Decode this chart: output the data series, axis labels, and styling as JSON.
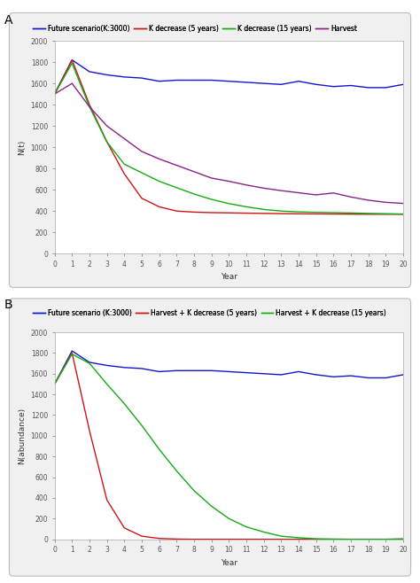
{
  "panel_A": {
    "label": "A",
    "legend": [
      {
        "label": "Future scenario(K:3000)",
        "color": "#1414cc",
        "lw": 1.0
      },
      {
        "label": "K decrease (5 years)",
        "color": "#cc1414",
        "lw": 1.0
      },
      {
        "label": "K decrease (15 years)",
        "color": "#14aa14",
        "lw": 1.0
      },
      {
        "label": "Harvest",
        "color": "#882288",
        "lw": 1.0
      }
    ],
    "xlabel": "Year",
    "ylabel": "N(t)",
    "ylim": [
      0,
      2000
    ],
    "xlim": [
      0,
      20
    ],
    "xticks": [
      0,
      1,
      2,
      3,
      4,
      5,
      6,
      7,
      8,
      9,
      10,
      11,
      12,
      13,
      14,
      15,
      16,
      17,
      18,
      19,
      20
    ],
    "yticks": [
      0,
      200,
      400,
      600,
      800,
      1000,
      1200,
      1400,
      1600,
      1800,
      2000
    ],
    "blue_y": [
      1500,
      1820,
      1710,
      1680,
      1660,
      1650,
      1620,
      1630,
      1630,
      1630,
      1620,
      1610,
      1600,
      1590,
      1620,
      1590,
      1570,
      1580,
      1560,
      1560,
      1590
    ],
    "red_y": [
      1500,
      1820,
      1400,
      1050,
      750,
      520,
      440,
      400,
      390,
      385,
      383,
      380,
      378,
      376,
      374,
      373,
      372,
      371,
      370,
      370,
      370
    ],
    "green_y": [
      1500,
      1790,
      1380,
      1050,
      840,
      760,
      680,
      620,
      560,
      510,
      470,
      440,
      415,
      400,
      392,
      388,
      385,
      382,
      378,
      375,
      372
    ],
    "purple_y": [
      1500,
      1600,
      1380,
      1200,
      1080,
      960,
      890,
      830,
      770,
      710,
      680,
      645,
      615,
      592,
      572,
      552,
      570,
      532,
      502,
      482,
      472
    ]
  },
  "panel_B": {
    "label": "B",
    "legend": [
      {
        "label": "Future scenario (K:3000)",
        "color": "#1414cc",
        "lw": 1.0
      },
      {
        "label": "Harvest + K decrease (5 years)",
        "color": "#cc1414",
        "lw": 1.0
      },
      {
        "label": "Harvest + K decrease (15 years)",
        "color": "#14aa14",
        "lw": 1.0
      }
    ],
    "xlabel": "Year",
    "ylabel": "N(abundance)",
    "ylim": [
      0,
      2000
    ],
    "xlim": [
      0,
      20
    ],
    "xticks": [
      0,
      1,
      2,
      3,
      4,
      5,
      6,
      7,
      8,
      9,
      10,
      11,
      12,
      13,
      14,
      15,
      16,
      17,
      18,
      19,
      20
    ],
    "yticks": [
      0,
      200,
      400,
      600,
      800,
      1000,
      1200,
      1400,
      1600,
      1800,
      2000
    ],
    "blue_y": [
      1500,
      1820,
      1710,
      1680,
      1660,
      1650,
      1620,
      1630,
      1630,
      1630,
      1620,
      1610,
      1600,
      1590,
      1620,
      1590,
      1570,
      1580,
      1560,
      1560,
      1590
    ],
    "red_y": [
      1500,
      1800,
      1050,
      380,
      110,
      30,
      8,
      2,
      0,
      0,
      0,
      0,
      0,
      0,
      0,
      0,
      0,
      0,
      0,
      0,
      0
    ],
    "green_y": [
      1500,
      1790,
      1700,
      1500,
      1310,
      1100,
      870,
      660,
      470,
      320,
      200,
      120,
      70,
      30,
      15,
      5,
      2,
      0,
      0,
      0,
      5
    ]
  },
  "fig_bg": "#ffffff",
  "panel_bg": "#f0f0f0",
  "inner_plot_bg": "#ffffff",
  "border_color": "#bbbbbb",
  "tick_fontsize": 5.5,
  "label_fontsize": 6.5,
  "legend_fontsize": 5.5
}
